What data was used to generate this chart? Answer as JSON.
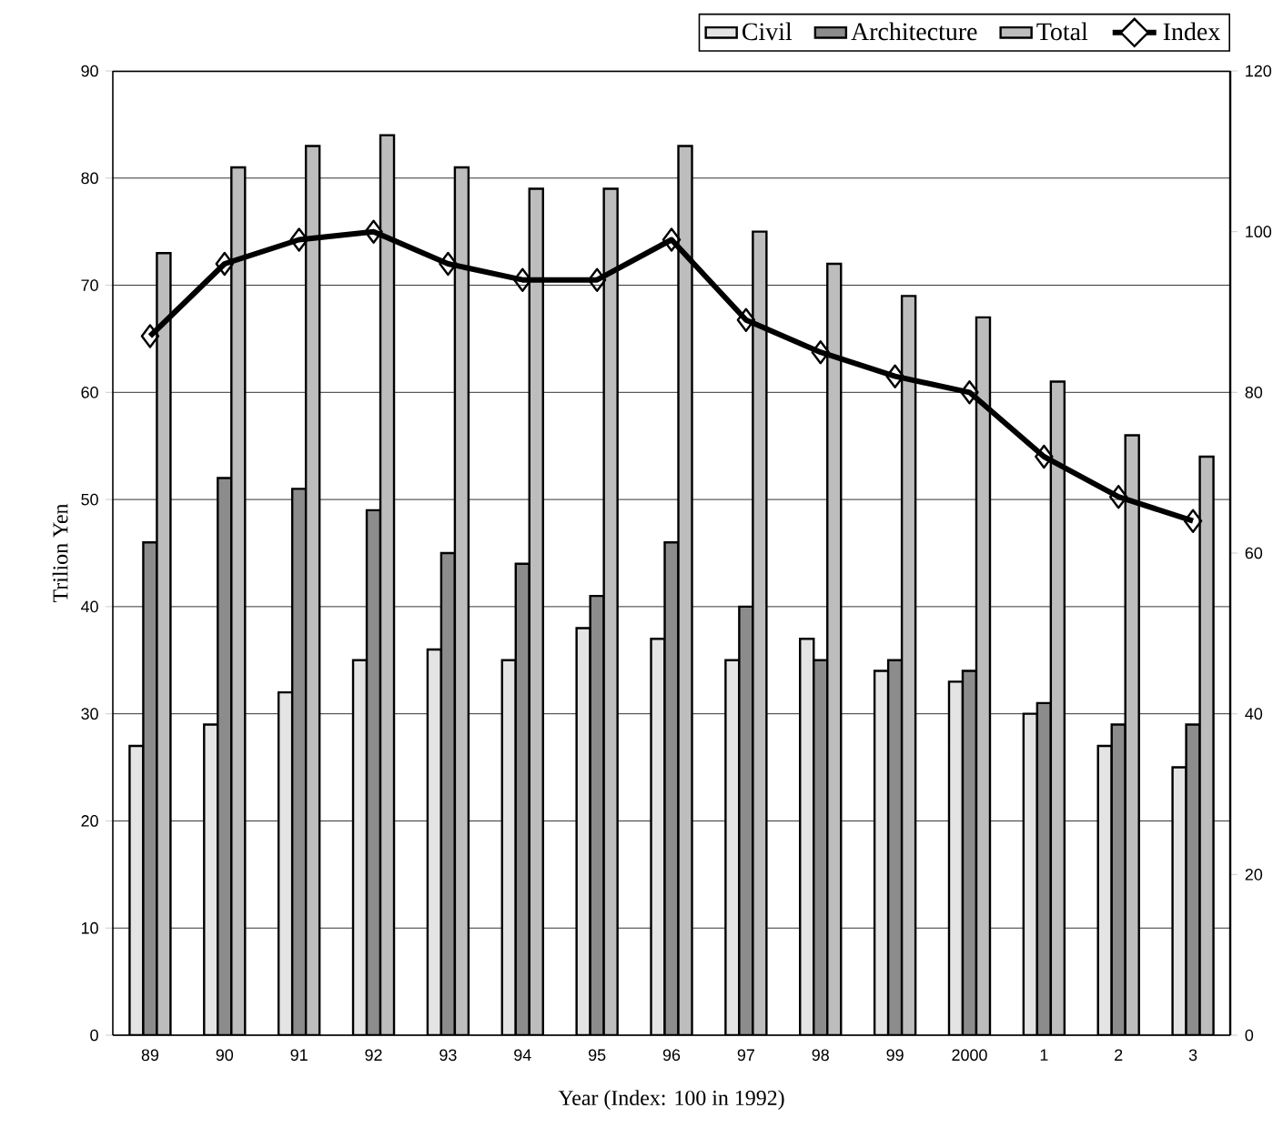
{
  "chart_data": {
    "type": "bar",
    "xlabel": "Year    (Index: 100 in 1992)",
    "ylabel": "Trilion Yen",
    "categories": [
      "89",
      "90",
      "91",
      "92",
      "93",
      "94",
      "95",
      "96",
      "97",
      "98",
      "99",
      "2000",
      "1",
      "2",
      "3"
    ],
    "series": [
      {
        "name": "Civil",
        "color": "#e4e4e4",
        "values": [
          27,
          29,
          32,
          35,
          36,
          35,
          38,
          37,
          35,
          37,
          34,
          33,
          30,
          27,
          25
        ]
      },
      {
        "name": "Architecture",
        "color": "#8c8c8c",
        "values": [
          46,
          52,
          51,
          49,
          45,
          44,
          41,
          46,
          40,
          35,
          35,
          34,
          31,
          29,
          29
        ]
      },
      {
        "name": "Total",
        "color": "#bdbdbd",
        "values": [
          73,
          81,
          83,
          84,
          81,
          79,
          79,
          83,
          75,
          72,
          69,
          67,
          61,
          56,
          54
        ]
      },
      {
        "name": "Index",
        "type": "line",
        "axis": "y2",
        "color": "#000000",
        "values": [
          87,
          96,
          99,
          100,
          96,
          94,
          94,
          99,
          89,
          85,
          82,
          80,
          72,
          67,
          64
        ]
      }
    ],
    "ylim": [
      0,
      90
    ],
    "yticks": [
      0,
      10,
      20,
      30,
      40,
      50,
      60,
      70,
      80,
      90
    ],
    "y2lim": [
      0,
      120
    ],
    "y2ticks": [
      0,
      20,
      40,
      60,
      80,
      100,
      120
    ],
    "grid": "y",
    "legend": "top right",
    "marker": "diamond"
  }
}
